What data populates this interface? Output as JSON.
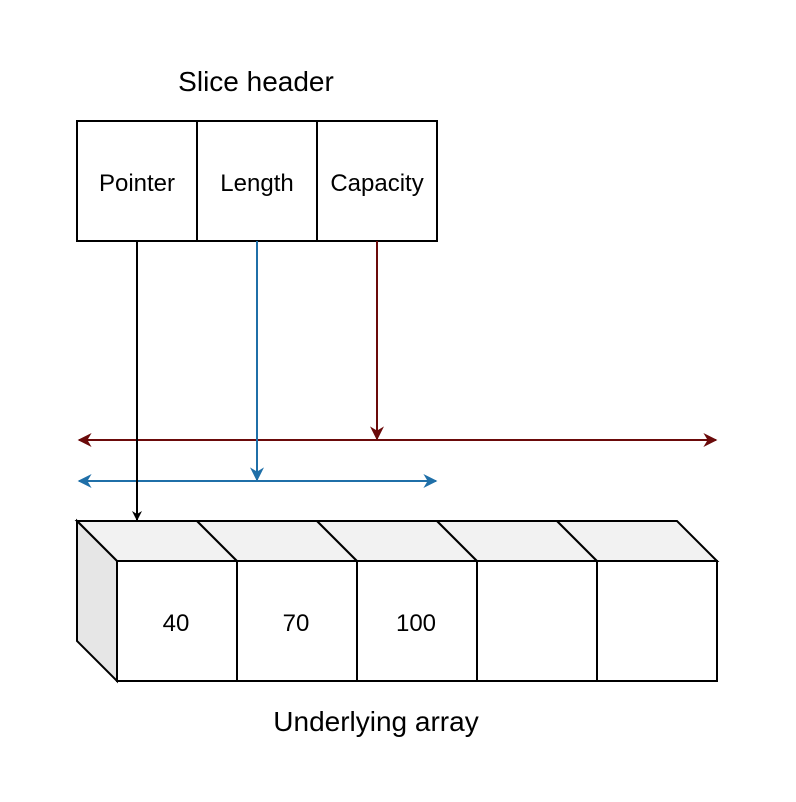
{
  "header": {
    "title": "Slice header",
    "fields": [
      {
        "label": "Pointer"
      },
      {
        "label": "Length"
      },
      {
        "label": "Capacity"
      }
    ]
  },
  "array": {
    "label": "Underlying array",
    "cells": [
      "40",
      "70",
      "100",
      "",
      ""
    ]
  },
  "colors": {
    "outline": "#000000",
    "pointer_arrow": "#000000",
    "length_arrow": "#1f6fa8",
    "capacity_arrow": "#6b0a0a",
    "cube_top": "#f2f2f2",
    "cube_side": "#e6e6e6",
    "cell_fill": "#ffffff"
  }
}
